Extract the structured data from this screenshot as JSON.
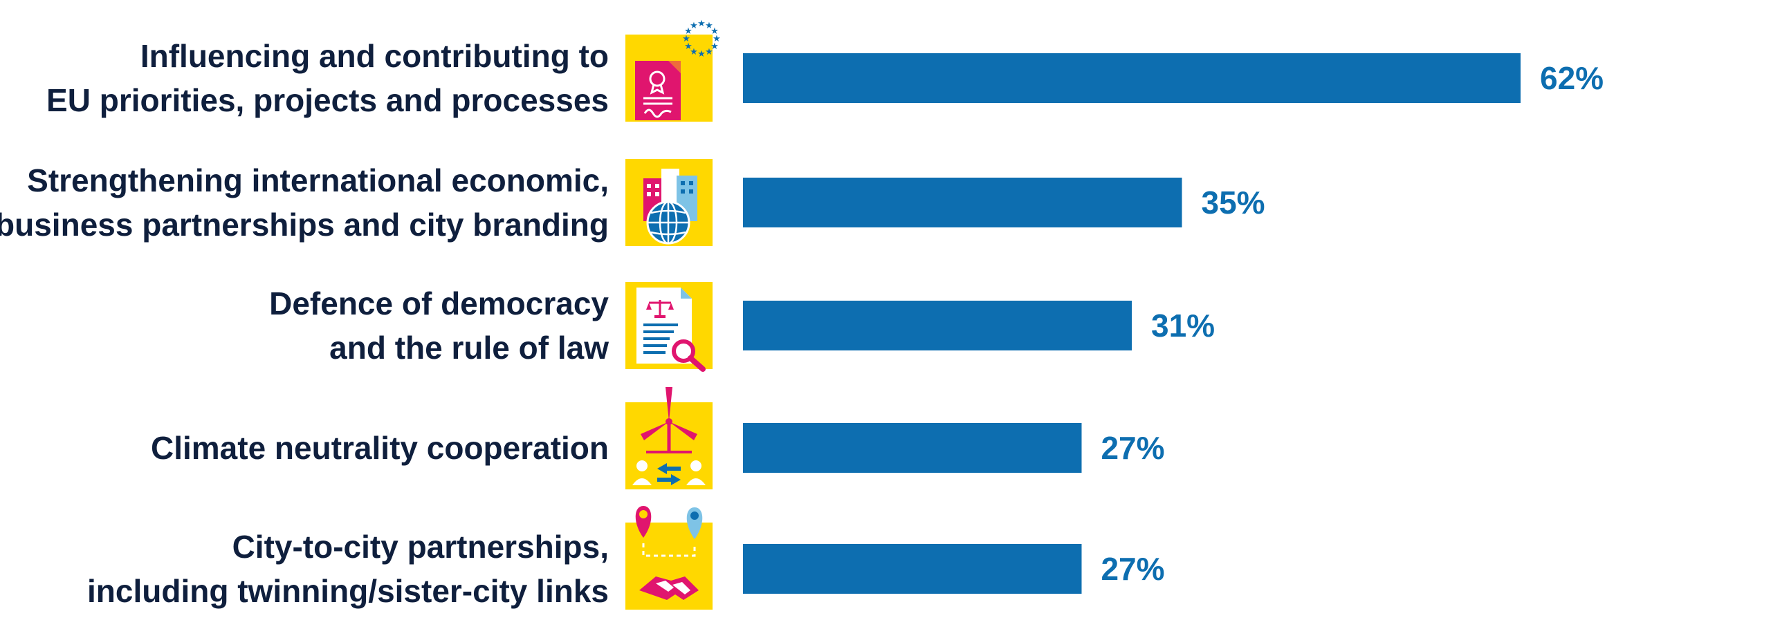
{
  "chart_data": {
    "type": "bar",
    "orientation": "horizontal",
    "categories": [
      [
        "Influencing and contributing to",
        "EU priorities, projects and processes"
      ],
      [
        "Strengthening international economic,",
        "business partnerships and city branding"
      ],
      [
        "Defence of democracy",
        "and the rule of law"
      ],
      [
        "Climate neutrality cooperation"
      ],
      [
        "City-to-city partnerships,",
        "including twinning/sister-city links"
      ]
    ],
    "values": [
      62,
      35,
      31,
      27,
      27
    ],
    "value_labels": [
      "62%",
      "35%",
      "31%",
      "27%",
      "27%"
    ],
    "icons": [
      "eu-document-icon",
      "city-globe-icon",
      "scales-document-magnifier-icon",
      "wind-turbine-exchange-icon",
      "map-pins-handshake-icon"
    ],
    "unit": "%",
    "xlim": [
      0,
      62
    ],
    "grid": false,
    "legend": "none",
    "title": "",
    "xlabel": "",
    "ylabel": ""
  },
  "colors": {
    "bar": "#0d6eb0",
    "value_text": "#0d6eb0",
    "label_text": "#0f1f3d",
    "icon_background": "#ffd800",
    "icon_magenta": "#e0156e",
    "icon_light_blue": "#7ec3e6",
    "icon_dark_blue": "#0d6eb0"
  }
}
